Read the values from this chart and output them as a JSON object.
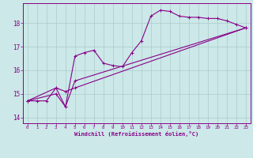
{
  "xlabel": "Windchill (Refroidissement éolien,°C)",
  "background_color": "#cce8e8",
  "grid_color": "#aacccc",
  "line_color": "#880088",
  "spine_color": "#9966aa",
  "xlim": [
    -0.5,
    23.5
  ],
  "ylim": [
    13.75,
    18.85
  ],
  "xticks": [
    0,
    1,
    2,
    3,
    4,
    5,
    6,
    7,
    8,
    9,
    10,
    11,
    12,
    13,
    14,
    15,
    16,
    17,
    18,
    19,
    20,
    21,
    22,
    23
  ],
  "yticks": [
    14,
    15,
    16,
    17,
    18
  ],
  "series1_x": [
    0,
    1,
    2,
    3,
    4,
    5,
    6,
    7,
    8,
    9,
    10,
    11,
    12,
    13,
    14,
    15,
    16,
    17,
    18,
    19,
    20,
    21,
    22,
    23
  ],
  "series1_y": [
    14.7,
    14.7,
    14.7,
    15.25,
    14.45,
    16.6,
    16.75,
    16.85,
    16.3,
    16.2,
    16.15,
    16.75,
    17.25,
    18.3,
    18.55,
    18.5,
    18.3,
    18.25,
    18.25,
    18.2,
    18.2,
    18.1,
    17.95,
    17.8
  ],
  "series2_x": [
    0,
    23
  ],
  "series2_y": [
    14.7,
    17.8
  ],
  "series3_x": [
    0,
    23
  ],
  "series3_y": [
    14.7,
    17.8
  ],
  "series2_ctrl_x": [
    0,
    3,
    4,
    5,
    23
  ],
  "series2_ctrl_y": [
    14.7,
    15.25,
    15.1,
    15.25,
    17.8
  ],
  "series3_ctrl_x": [
    0,
    3,
    4,
    5,
    23
  ],
  "series3_ctrl_y": [
    14.7,
    15.0,
    14.45,
    15.55,
    17.8
  ]
}
